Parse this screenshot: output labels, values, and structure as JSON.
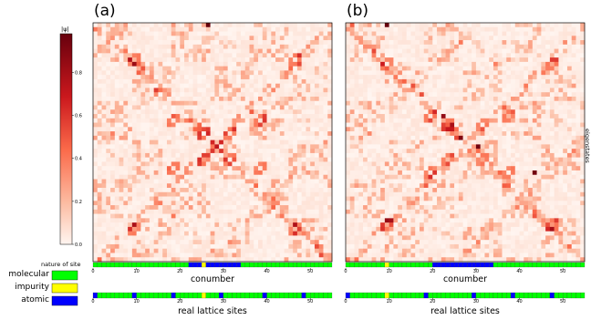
{
  "panels": [
    {
      "id": "a",
      "label": "(a)"
    },
    {
      "id": "b",
      "label": "(b)"
    }
  ],
  "colorbar": {
    "label": "|ψ|",
    "ticks": [
      "0.0",
      "0.2",
      "0.4",
      "0.6",
      "0.8"
    ],
    "tick_values": [
      0.0,
      0.2,
      0.4,
      0.6,
      0.8
    ],
    "range": [
      0,
      0.98
    ],
    "colors": {
      "low": "#fff5f0",
      "mid": "#fb6a4a",
      "high": "#67000d"
    }
  },
  "labels": {
    "nature_of_site": "nature of site",
    "conumber": "conumber",
    "real_lattice_sites": "real lattice sites",
    "eigenstates": "eigenstates"
  },
  "legend": {
    "items": [
      {
        "label": "molecular",
        "color": "#00ff00"
      },
      {
        "label": "impurity",
        "color": "#ffff00"
      },
      {
        "label": "atomic",
        "color": "#0000ff"
      }
    ]
  },
  "chart_data": [
    {
      "type": "heatmap",
      "panel": "(a)",
      "xlabel": "conumber",
      "ylabel": "",
      "xticks": [
        "0",
        "10",
        "20",
        "30",
        "40",
        "50"
      ],
      "x_range": [
        0,
        55
      ],
      "grid_size": [
        55,
        55
      ],
      "value_range": [
        0,
        0.98
      ],
      "site_strip": {
        "label": "nature of site",
        "atomic_ranges": [
          [
            22,
            34
          ]
        ],
        "impurity_sites": [
          25
        ],
        "default": "molecular"
      },
      "real_sites_strip": {
        "label": "real lattice sites",
        "atomic_sites": [
          0,
          9,
          18,
          29,
          39,
          48
        ],
        "impurity_sites": [
          25
        ],
        "default": "molecular"
      },
      "peaks": [
        {
          "x": 26,
          "y": 0,
          "value": 0.98
        },
        {
          "x": 28,
          "y": 28,
          "value": 0.72
        },
        {
          "x": 27,
          "y": 27,
          "value": 0.65
        },
        {
          "x": 29,
          "y": 27,
          "value": 0.65
        },
        {
          "x": 27,
          "y": 29,
          "value": 0.6
        },
        {
          "x": 29,
          "y": 29,
          "value": 0.6
        }
      ]
    },
    {
      "type": "heatmap",
      "panel": "(b)",
      "xlabel": "conumber",
      "ylabel": "eigenstates",
      "xticks": [
        "0",
        "10",
        "20",
        "30",
        "40",
        "50"
      ],
      "x_range": [
        0,
        55
      ],
      "grid_size": [
        55,
        55
      ],
      "value_range": [
        0,
        0.98
      ],
      "site_strip": {
        "label": "",
        "atomic_ranges": [
          [
            20,
            34
          ]
        ],
        "impurity_sites": [
          9
        ],
        "default": "molecular"
      },
      "real_sites_strip": {
        "label": "real lattice sites",
        "atomic_sites": [
          0,
          9,
          18,
          29,
          38,
          47
        ],
        "impurity_sites": [
          9
        ],
        "default": "molecular"
      },
      "peaks": [
        {
          "x": 9,
          "y": 0,
          "value": 0.98
        },
        {
          "x": 30,
          "y": 28,
          "value": 0.95
        },
        {
          "x": 26,
          "y": 26,
          "value": 0.9
        },
        {
          "x": 22,
          "y": 21,
          "value": 0.85
        },
        {
          "x": 43,
          "y": 34,
          "value": 0.95
        },
        {
          "x": 24,
          "y": 24,
          "value": 0.7
        }
      ]
    }
  ]
}
